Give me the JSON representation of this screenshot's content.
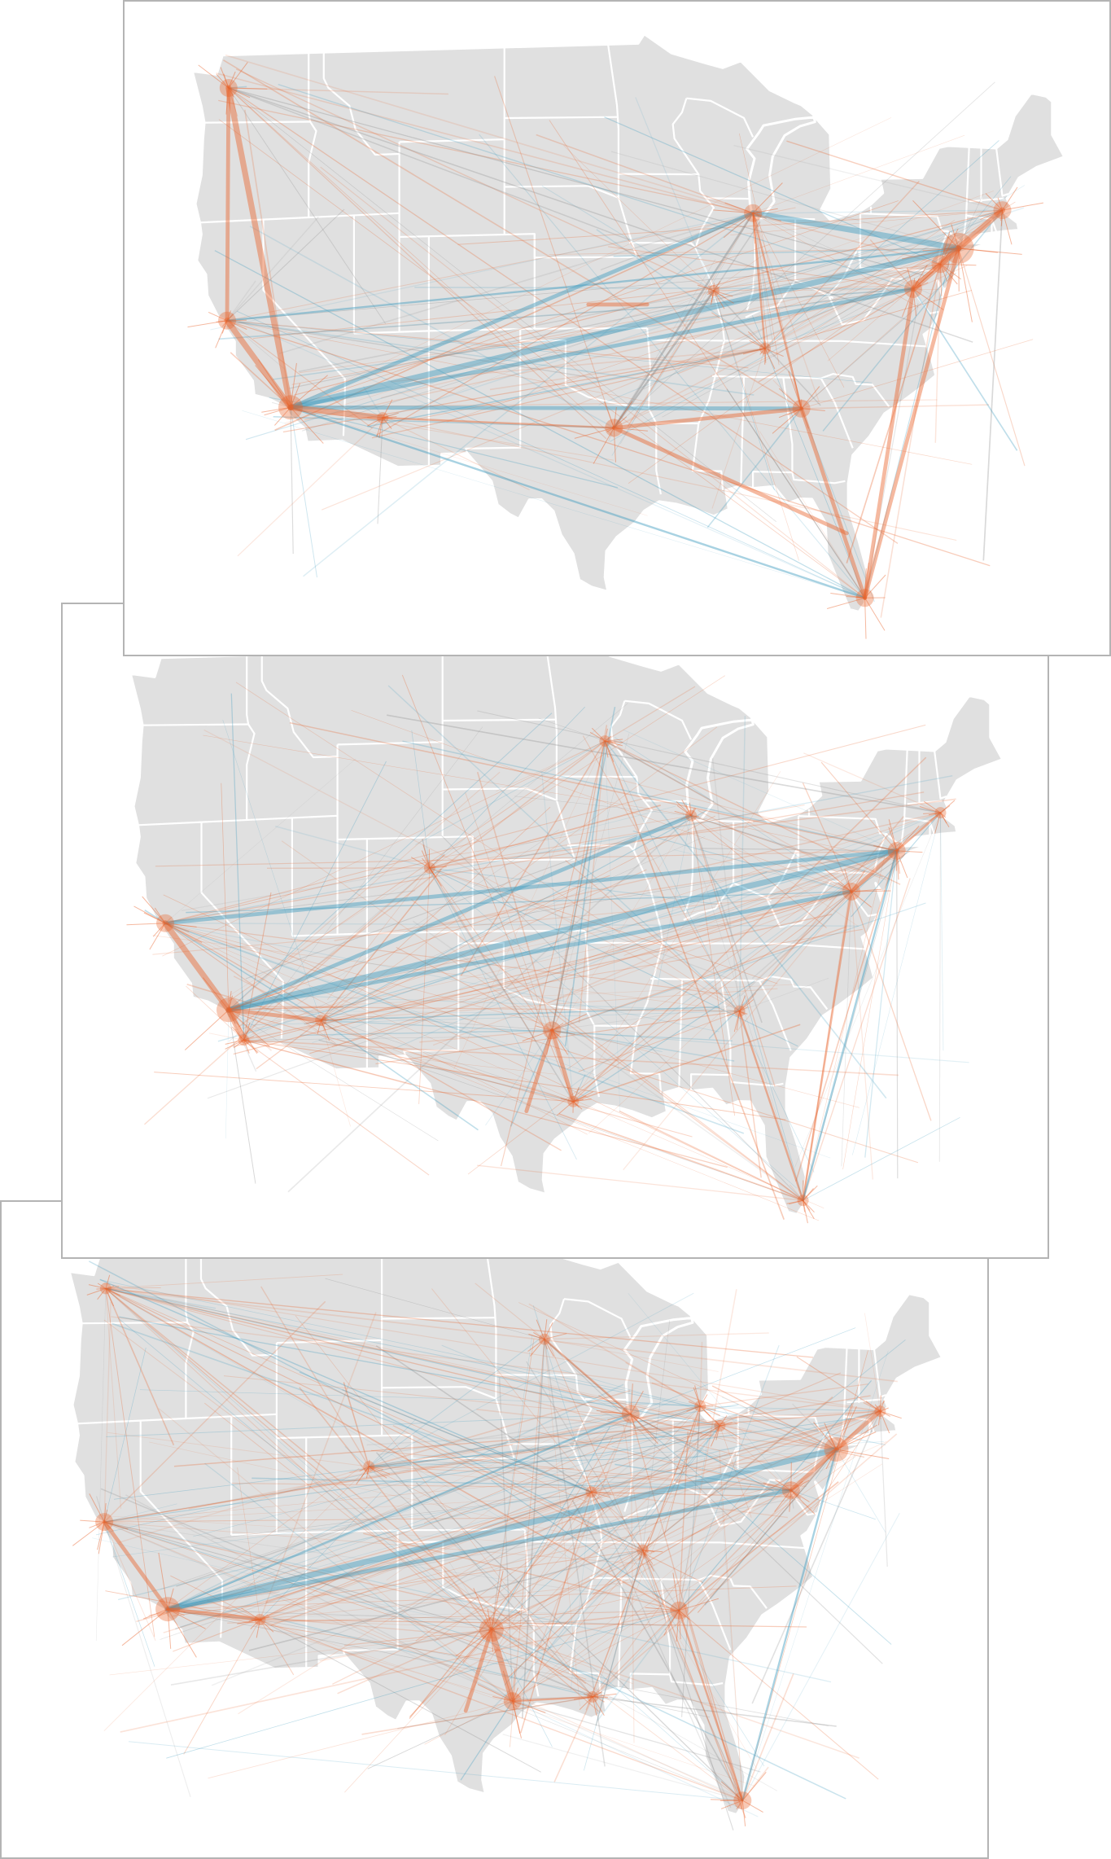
{
  "figure": {
    "land_color": "#e0e0e0",
    "border_color": "#ffffff",
    "frame_color": "#b4b4b4",
    "link_colors": {
      "local": "#e8642c",
      "national": "#3d9bbf",
      "mixed": "#8c8c8c"
    },
    "panels": [
      {
        "id": "panel-1",
        "hubs": [
          {
            "lon": -118.2,
            "lat": 34.0,
            "w": 3
          },
          {
            "lon": -122.4,
            "lat": 37.8,
            "w": 2
          },
          {
            "lon": -122.3,
            "lat": 47.6,
            "w": 2
          },
          {
            "lon": -74.0,
            "lat": 40.7,
            "w": 4
          },
          {
            "lon": -71.1,
            "lat": 42.4,
            "w": 2
          },
          {
            "lon": -77.0,
            "lat": 38.9,
            "w": 2
          },
          {
            "lon": -75.2,
            "lat": 40.0,
            "w": 2
          },
          {
            "lon": -87.6,
            "lat": 41.9,
            "w": 2
          },
          {
            "lon": -96.8,
            "lat": 32.8,
            "w": 2
          },
          {
            "lon": -84.4,
            "lat": 33.7,
            "w": 2
          },
          {
            "lon": -80.2,
            "lat": 25.8,
            "w": 2
          },
          {
            "lon": -112.1,
            "lat": 33.4,
            "w": 1
          },
          {
            "lon": -90.2,
            "lat": 38.6,
            "w": 1
          },
          {
            "lon": -86.8,
            "lat": 36.2,
            "w": 1
          }
        ],
        "links": [
          {
            "a": [
              -118.2,
              34.0
            ],
            "b": [
              -74.0,
              40.7
            ],
            "type": "national",
            "w": 3
          },
          {
            "a": [
              -118.2,
              34.0
            ],
            "b": [
              -87.6,
              41.9
            ],
            "type": "national",
            "w": 2
          },
          {
            "a": [
              -118.2,
              34.0
            ],
            "b": [
              -84.4,
              33.7
            ],
            "type": "national",
            "w": 2
          },
          {
            "a": [
              -118.2,
              34.0
            ],
            "b": [
              -77.0,
              38.9
            ],
            "type": "national",
            "w": 2
          },
          {
            "a": [
              -118.2,
              34.0
            ],
            "b": [
              -80.2,
              25.8
            ],
            "type": "national",
            "w": 1
          },
          {
            "a": [
              -118.2,
              34.0
            ],
            "b": [
              -122.3,
              47.6
            ],
            "type": "local",
            "w": 3
          },
          {
            "a": [
              -118.2,
              34.0
            ],
            "b": [
              -112.1,
              33.4
            ],
            "type": "local",
            "w": 3
          },
          {
            "a": [
              -118.2,
              34.0
            ],
            "b": [
              -122.4,
              37.8
            ],
            "type": "local",
            "w": 3
          },
          {
            "a": [
              -122.3,
              47.6
            ],
            "b": [
              -122.4,
              37.8
            ],
            "type": "local",
            "w": 2
          },
          {
            "a": [
              -74.0,
              40.7
            ],
            "b": [
              -87.6,
              41.9
            ],
            "type": "national",
            "w": 3
          },
          {
            "a": [
              -74.0,
              40.7
            ],
            "b": [
              -77.0,
              38.9
            ],
            "type": "local",
            "w": 3
          },
          {
            "a": [
              -74.0,
              40.7
            ],
            "b": [
              -71.1,
              42.4
            ],
            "type": "local",
            "w": 3
          },
          {
            "a": [
              -74.0,
              40.7
            ],
            "b": [
              -80.2,
              25.8
            ],
            "type": "local",
            "w": 2
          },
          {
            "a": [
              -77.0,
              38.9
            ],
            "b": [
              -80.2,
              25.8
            ],
            "type": "local",
            "w": 2
          },
          {
            "a": [
              -96.8,
              32.8
            ],
            "b": [
              -84.4,
              33.7
            ],
            "type": "local",
            "w": 2
          },
          {
            "a": [
              -96.8,
              32.8
            ],
            "b": [
              -81.4,
              28.5
            ],
            "type": "local",
            "w": 2
          },
          {
            "a": [
              -96.8,
              32.8
            ],
            "b": [
              -90.2,
              38.6
            ],
            "type": "mixed",
            "w": 1
          },
          {
            "a": [
              -84.4,
              33.7
            ],
            "b": [
              -80.2,
              25.8
            ],
            "type": "local",
            "w": 2
          },
          {
            "a": [
              -87.6,
              41.9
            ],
            "b": [
              -86.8,
              36.2
            ],
            "type": "local",
            "w": 1
          },
          {
            "a": [
              -87.6,
              41.9
            ],
            "b": [
              -84.4,
              33.7
            ],
            "type": "local",
            "w": 1
          },
          {
            "a": [
              -87.6,
              41.9
            ],
            "b": [
              -96.8,
              32.8
            ],
            "type": "mixed",
            "w": 1
          },
          {
            "a": [
              -98.5,
              38.0
            ],
            "b": [
              -94.6,
              38.0
            ],
            "type": "local",
            "w": 2
          },
          {
            "a": [
              -112.1,
              33.4
            ],
            "b": [
              -96.8,
              32.8
            ],
            "type": "local",
            "w": 1
          },
          {
            "a": [
              -122.4,
              37.8
            ],
            "b": [
              -74.0,
              40.7
            ],
            "type": "national",
            "w": 1
          }
        ],
        "bg_links": 180,
        "seed": 11
      },
      {
        "id": "panel-2",
        "hubs": [
          {
            "lon": -118.2,
            "lat": 34.0,
            "w": 3
          },
          {
            "lon": -122.4,
            "lat": 37.8,
            "w": 2
          },
          {
            "lon": -74.0,
            "lat": 40.7,
            "w": 2
          },
          {
            "lon": -77.0,
            "lat": 38.9,
            "w": 2
          },
          {
            "lon": -96.8,
            "lat": 32.8,
            "w": 2
          },
          {
            "lon": -95.4,
            "lat": 29.8,
            "w": 1
          },
          {
            "lon": -87.6,
            "lat": 41.9,
            "w": 1
          },
          {
            "lon": -84.4,
            "lat": 33.7,
            "w": 1
          },
          {
            "lon": -80.2,
            "lat": 25.8,
            "w": 1
          },
          {
            "lon": -112.1,
            "lat": 33.4,
            "w": 1
          },
          {
            "lon": -117.2,
            "lat": 32.7,
            "w": 1
          },
          {
            "lon": -104.9,
            "lat": 39.7,
            "w": 1
          },
          {
            "lon": -93.3,
            "lat": 45.0,
            "w": 1
          },
          {
            "lon": -71.1,
            "lat": 42.4,
            "w": 1
          }
        ],
        "links": [
          {
            "a": [
              -118.2,
              34.0
            ],
            "b": [
              -74.0,
              40.7
            ],
            "type": "national",
            "w": 3
          },
          {
            "a": [
              -118.2,
              34.0
            ],
            "b": [
              -77.0,
              38.9
            ],
            "type": "national",
            "w": 2
          },
          {
            "a": [
              -122.4,
              37.8
            ],
            "b": [
              -74.0,
              40.7
            ],
            "type": "national",
            "w": 2
          },
          {
            "a": [
              -118.2,
              34.0
            ],
            "b": [
              -87.6,
              41.9
            ],
            "type": "national",
            "w": 2
          },
          {
            "a": [
              -118.2,
              34.0
            ],
            "b": [
              -122.4,
              37.8
            ],
            "type": "local",
            "w": 3
          },
          {
            "a": [
              -118.2,
              34.0
            ],
            "b": [
              -117.2,
              32.7
            ],
            "type": "local",
            "w": 3
          },
          {
            "a": [
              -118.2,
              34.0
            ],
            "b": [
              -112.1,
              33.4
            ],
            "type": "local",
            "w": 2
          },
          {
            "a": [
              -96.8,
              32.8
            ],
            "b": [
              -95.4,
              29.8
            ],
            "type": "local",
            "w": 2
          },
          {
            "a": [
              -96.8,
              32.8
            ],
            "b": [
              -98.5,
              29.4
            ],
            "type": "local",
            "w": 2
          },
          {
            "a": [
              -74.0,
              40.7
            ],
            "b": [
              -77.0,
              38.9
            ],
            "type": "local",
            "w": 2
          },
          {
            "a": [
              -74.0,
              40.7
            ],
            "b": [
              -71.1,
              42.4
            ],
            "type": "local",
            "w": 1
          },
          {
            "a": [
              -84.4,
              33.7
            ],
            "b": [
              -80.2,
              25.8
            ],
            "type": "local",
            "w": 1
          },
          {
            "a": [
              -77.0,
              38.9
            ],
            "b": [
              -80.2,
              25.8
            ],
            "type": "local",
            "w": 1
          },
          {
            "a": [
              -80.2,
              25.8
            ],
            "b": [
              -74.0,
              40.7
            ],
            "type": "national",
            "w": 1
          }
        ],
        "bg_links": 260,
        "seed": 23
      },
      {
        "id": "panel-3",
        "hubs": [
          {
            "lon": -118.2,
            "lat": 34.0,
            "w": 3
          },
          {
            "lon": -122.4,
            "lat": 37.8,
            "w": 2
          },
          {
            "lon": -74.0,
            "lat": 40.7,
            "w": 3
          },
          {
            "lon": -96.8,
            "lat": 32.8,
            "w": 3
          },
          {
            "lon": -95.4,
            "lat": 29.8,
            "w": 2
          },
          {
            "lon": -80.2,
            "lat": 25.8,
            "w": 2
          },
          {
            "lon": -84.4,
            "lat": 33.7,
            "w": 2
          },
          {
            "lon": -87.6,
            "lat": 41.9,
            "w": 2
          },
          {
            "lon": -77.0,
            "lat": 38.9,
            "w": 2
          },
          {
            "lon": -122.3,
            "lat": 47.6,
            "w": 1
          },
          {
            "lon": -104.9,
            "lat": 39.7,
            "w": 1
          },
          {
            "lon": -93.3,
            "lat": 45.0,
            "w": 1
          },
          {
            "lon": -90.1,
            "lat": 30.0,
            "w": 1
          },
          {
            "lon": -71.1,
            "lat": 42.4,
            "w": 1
          },
          {
            "lon": -112.1,
            "lat": 33.4,
            "w": 1
          },
          {
            "lon": -86.8,
            "lat": 36.2,
            "w": 1
          },
          {
            "lon": -90.2,
            "lat": 38.6,
            "w": 1
          },
          {
            "lon": -83.0,
            "lat": 42.3,
            "w": 1
          },
          {
            "lon": -81.7,
            "lat": 41.5,
            "w": 1
          }
        ],
        "links": [
          {
            "a": [
              -118.2,
              34.0
            ],
            "b": [
              -74.0,
              40.7
            ],
            "type": "national",
            "w": 3
          },
          {
            "a": [
              -118.2,
              34.0
            ],
            "b": [
              -77.0,
              38.9
            ],
            "type": "national",
            "w": 2
          },
          {
            "a": [
              -118.2,
              34.0
            ],
            "b": [
              -87.6,
              41.9
            ],
            "type": "national",
            "w": 1
          },
          {
            "a": [
              -118.2,
              34.0
            ],
            "b": [
              -122.4,
              37.8
            ],
            "type": "local",
            "w": 2
          },
          {
            "a": [
              -118.2,
              34.0
            ],
            "b": [
              -112.1,
              33.4
            ],
            "type": "local",
            "w": 2
          },
          {
            "a": [
              -96.8,
              32.8
            ],
            "b": [
              -95.4,
              29.8
            ],
            "type": "local",
            "w": 3
          },
          {
            "a": [
              -96.8,
              32.8
            ],
            "b": [
              -98.5,
              29.4
            ],
            "type": "local",
            "w": 2
          },
          {
            "a": [
              -95.4,
              29.8
            ],
            "b": [
              -90.1,
              30.0
            ],
            "type": "local",
            "w": 1
          },
          {
            "a": [
              -74.0,
              40.7
            ],
            "b": [
              -71.1,
              42.4
            ],
            "type": "local",
            "w": 2
          },
          {
            "a": [
              -74.0,
              40.7
            ],
            "b": [
              -77.0,
              38.9
            ],
            "type": "local",
            "w": 2
          },
          {
            "a": [
              -84.4,
              33.7
            ],
            "b": [
              -80.2,
              25.8
            ],
            "type": "local",
            "w": 1
          },
          {
            "a": [
              -80.2,
              25.8
            ],
            "b": [
              -74.0,
              40.7
            ],
            "type": "national",
            "w": 1
          },
          {
            "a": [
              -87.6,
              41.9
            ],
            "b": [
              -93.3,
              45.0
            ],
            "type": "local",
            "w": 1
          }
        ],
        "bg_links": 340,
        "seed": 37
      }
    ]
  }
}
